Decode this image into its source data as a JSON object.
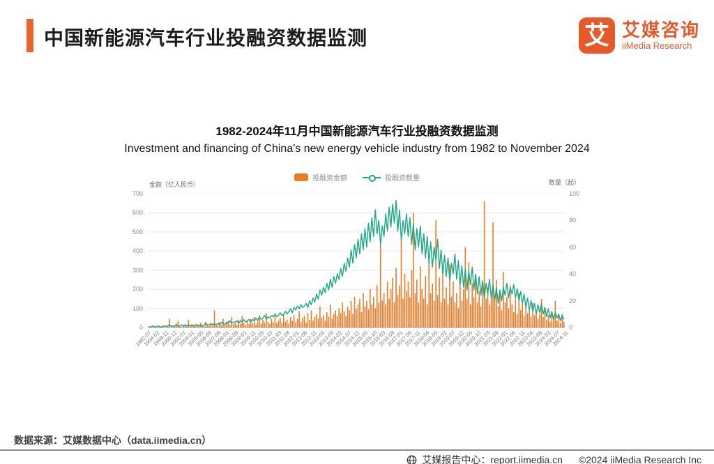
{
  "header": {
    "title": "中国新能源汽车行业投融资数据监测",
    "accent_color": "#E8652E"
  },
  "logo": {
    "glyph": "艾",
    "name_cn": "艾媒咨询",
    "name_en": "iiMedia Research",
    "color": "#E45A2B"
  },
  "chart": {
    "title": "1982-2024年11月中国新能源汽车行业投融资数据监测",
    "subtitle": "Investment and financing of China's  new energy vehicle industry from 1982 to November 2024",
    "legend": [
      {
        "label": "投融资金额",
        "type": "bar",
        "color": "#ED7A25"
      },
      {
        "label": "投融资数量",
        "type": "line",
        "color": "#1BA784"
      }
    ],
    "left_axis": {
      "title": "金额（亿人民币）",
      "ticks": [
        700,
        600,
        500,
        400,
        300,
        200,
        100,
        0
      ],
      "max": 700
    },
    "right_axis": {
      "title": "数量（起）",
      "ticks": [
        100,
        80,
        60,
        40,
        20,
        0
      ],
      "max": 100
    }
  },
  "chart_data": {
    "type": "bar",
    "note": "dual-axis combo: bars = amount (left axis, 亿人民币), line = number of deals (right axis, 起); values estimated from pixels",
    "x_tick_labels": [
      "1982-07",
      "1994-02",
      "1998-11",
      "2000-12",
      "2002-07",
      "2004-01",
      "2005-05",
      "2006-09",
      "2007-06",
      "2008-01",
      "2008-08",
      "2009-01",
      "2009-11",
      "2010-05",
      "2010-10",
      "2011-03",
      "2011-08",
      "2012-01",
      "2012-06",
      "2012-11",
      "2013-04",
      "2013-09",
      "2014-02",
      "2014-07",
      "2014-12",
      "2015-05",
      "2015-10",
      "2016-03",
      "2016-08",
      "2017-01",
      "2017-06",
      "2017-11",
      "2018-04",
      "2018-09",
      "2019-02",
      "2019-07",
      "2019-12",
      "2020-05",
      "2020-10",
      "2021-03",
      "2021-08",
      "2022-01",
      "2022-06",
      "2022-11",
      "2023-04",
      "2023-09",
      "2024-02",
      "2024-07",
      "2024-11"
    ],
    "x_label_every_n_points": 5,
    "left_ylim": [
      0,
      700
    ],
    "right_ylim": [
      0,
      100
    ],
    "grid": true,
    "legend_position": "top",
    "series": [
      {
        "name": "投融资金额",
        "type": "bar",
        "axis": "left",
        "unit": "亿人民币",
        "color": "#ED7A25",
        "values": [
          3,
          1,
          2,
          5,
          2,
          1,
          4,
          2,
          6,
          3,
          2,
          8,
          45,
          5,
          3,
          10,
          22,
          35,
          6,
          4,
          7,
          12,
          5,
          40,
          9,
          14,
          6,
          10,
          18,
          8,
          25,
          12,
          7,
          30,
          15,
          9,
          20,
          12,
          90,
          16,
          10,
          28,
          14,
          45,
          11,
          22,
          35,
          13,
          55,
          18,
          26,
          15,
          40,
          20,
          60,
          25,
          12,
          35,
          18,
          45,
          22,
          55,
          15,
          30,
          65,
          20,
          40,
          25,
          75,
          30,
          18,
          45,
          28,
          60,
          22,
          35,
          50,
          25,
          70,
          30,
          40,
          20,
          55,
          35,
          65,
          28,
          45,
          85,
          30,
          50,
          60,
          25,
          75,
          40,
          90,
          35,
          55,
          70,
          45,
          110,
          50,
          65,
          35,
          80,
          55,
          120,
          45,
          70,
          90,
          60,
          100,
          75,
          130,
          85,
          60,
          110,
          90,
          140,
          70,
          160,
          95,
          120,
          150,
          80,
          180,
          110,
          140,
          95,
          200,
          120,
          160,
          100,
          220,
          130,
          450,
          140,
          180,
          120,
          240,
          150,
          200,
          260,
          130,
          310,
          170,
          220,
          480,
          150,
          280,
          190,
          240,
          160,
          300,
          600,
          180,
          250,
          130,
          320,
          200,
          150,
          270,
          120,
          350,
          180,
          230,
          140,
          560,
          170,
          260,
          130,
          310,
          150,
          210,
          120,
          330,
          160,
          240,
          130,
          180,
          100,
          260,
          140,
          200,
          420,
          150,
          340,
          120,
          230,
          160,
          280,
          130,
          190,
          110,
          240,
          660,
          150,
          210,
          120,
          170,
          550,
          140,
          250,
          110,
          180,
          90,
          290,
          130,
          160,
          100,
          220,
          120,
          80,
          150,
          70,
          180,
          90,
          130,
          60,
          110,
          75,
          95,
          55,
          130,
          65,
          85,
          45,
          70,
          150,
          55,
          90,
          40,
          65,
          30,
          80,
          45,
          140,
          35,
          60,
          25,
          70,
          30
        ]
      },
      {
        "name": "投融资数量",
        "type": "line",
        "axis": "right",
        "unit": "起",
        "color": "#1BA784",
        "values": [
          1,
          0,
          1,
          1,
          0,
          1,
          1,
          0,
          1,
          1,
          1,
          1,
          2,
          1,
          1,
          1,
          2,
          1,
          1,
          2,
          1,
          2,
          1,
          2,
          1,
          2,
          1,
          2,
          2,
          1,
          2,
          1,
          2,
          3,
          2,
          2,
          3,
          2,
          3,
          2,
          3,
          2,
          4,
          3,
          2,
          4,
          3,
          5,
          3,
          4,
          4,
          5,
          3,
          5,
          4,
          6,
          4,
          5,
          6,
          4,
          6,
          5,
          7,
          5,
          8,
          6,
          7,
          9,
          6,
          8,
          7,
          9,
          8,
          10,
          8,
          9,
          11,
          9,
          10,
          12,
          10,
          12,
          14,
          11,
          15,
          13,
          16,
          14,
          17,
          15,
          16,
          18,
          15,
          20,
          17,
          22,
          19,
          25,
          21,
          28,
          24,
          30,
          26,
          33,
          28,
          36,
          30,
          38,
          33,
          40,
          36,
          44,
          38,
          48,
          42,
          52,
          45,
          58,
          48,
          62,
          52,
          66,
          55,
          70,
          58,
          74,
          60,
          78,
          64,
          82,
          68,
          88,
          70,
          80,
          62,
          76,
          68,
          85,
          72,
          90,
          75,
          92,
          78,
          95,
          72,
          88,
          65,
          80,
          70,
          85,
          68,
          82,
          62,
          78,
          58,
          74,
          60,
          76,
          55,
          70,
          52,
          68,
          48,
          64,
          45,
          60,
          50,
          66,
          44,
          58,
          40,
          54,
          38,
          52,
          35,
          48,
          40,
          55,
          36,
          50,
          32,
          46,
          30,
          44,
          28,
          42,
          32,
          45,
          28,
          40,
          25,
          38,
          24,
          35,
          22,
          33,
          25,
          36,
          22,
          32,
          20,
          30,
          18,
          28,
          20,
          30,
          24,
          33,
          22,
          30,
          25,
          32,
          22,
          29,
          20,
          27,
          18,
          25,
          15,
          22,
          13,
          20,
          12,
          18,
          10,
          17,
          11,
          18,
          10,
          15,
          8,
          14,
          7,
          12,
          6,
          11,
          7,
          10,
          5,
          9,
          6
        ]
      }
    ]
  },
  "source": {
    "text": "数据来源：艾媒数据中心（data.iimedia.cn）"
  },
  "footer": {
    "report_center": "艾媒报告中心：report.iimedia.cn",
    "copyright": "©2024  iiMedia Research Inc"
  }
}
